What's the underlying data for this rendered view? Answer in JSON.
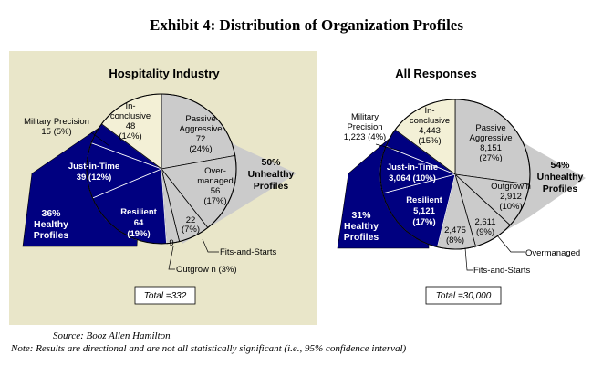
{
  "title": "Exhibit 4: Distribution of Organization Profiles",
  "colors": {
    "panel_bg": "#e9e6c9",
    "healthy_fill": "#000080",
    "unhealthy_fill": "#cbcbcb",
    "inconclusive_fill": "#f3f0d6",
    "outline": "#000000"
  },
  "chart_data": [
    {
      "type": "pie",
      "title": "Hospitality Industry",
      "total_label": "Total =332",
      "total": 332,
      "slices": [
        {
          "name": "Passive Aggressive",
          "value": 72,
          "percent": 24,
          "group": "unhealthy"
        },
        {
          "name": "Over-managed",
          "value": 56,
          "percent": 17,
          "group": "unhealthy"
        },
        {
          "name": "Fits-and-Starts",
          "value": 22,
          "percent": 7,
          "group": "unhealthy"
        },
        {
          "name": "Outgrown",
          "value": 9,
          "percent": 3,
          "group": "unhealthy"
        },
        {
          "name": "Resilient",
          "value": 64,
          "percent": 19,
          "group": "healthy"
        },
        {
          "name": "Just-in-Time",
          "value": 39,
          "percent": 12,
          "group": "healthy"
        },
        {
          "name": "Military Precision",
          "value": 15,
          "percent": 5,
          "group": "healthy"
        },
        {
          "name": "Inconclusive",
          "value": 48,
          "percent": 14,
          "group": "inconclusive"
        }
      ],
      "labels": {
        "passive": [
          "Passive",
          "Aggressive",
          "72",
          "(24%)"
        ],
        "over": [
          "Over-",
          "managed",
          "56",
          "(17%)"
        ],
        "fits": [
          "22",
          "(7%)"
        ],
        "fits_call": "Fits-and-Starts",
        "out_inner": "9",
        "out_call": "Outgrow n (3%)",
        "resilient": [
          "Resilient",
          "64",
          "(19%)"
        ],
        "jit": [
          "Just-in-Time",
          "39 (12%)"
        ],
        "military": [
          "Military Precision",
          "15  (5%)"
        ],
        "incon": [
          "In-",
          "conclusive",
          "48",
          "(14%)"
        ]
      },
      "healthy_label": [
        "36%",
        "Healthy",
        "Profiles"
      ],
      "unhealthy_label": [
        "50%",
        "Unhealthy",
        "Profiles"
      ]
    },
    {
      "type": "pie",
      "title": "All Responses",
      "total_label": "Total =30,000",
      "total": 30000,
      "slices": [
        {
          "name": "Passive Aggressive",
          "value": 8151,
          "percent": 27,
          "group": "unhealthy"
        },
        {
          "name": "Outgrown",
          "value": 2912,
          "percent": 10,
          "group": "unhealthy"
        },
        {
          "name": "Overmanaged",
          "value": 2611,
          "percent": 9,
          "group": "unhealthy"
        },
        {
          "name": "Fits-and-Starts",
          "value": 2475,
          "percent": 8,
          "group": "unhealthy"
        },
        {
          "name": "Resilient",
          "value": 5121,
          "percent": 17,
          "group": "healthy"
        },
        {
          "name": "Just-in-Time",
          "value": 3064,
          "percent": 10,
          "group": "healthy"
        },
        {
          "name": "Military Precision",
          "value": 1223,
          "percent": 4,
          "group": "healthy"
        },
        {
          "name": "Inconclusive",
          "value": 4443,
          "percent": 15,
          "group": "inconclusive"
        }
      ],
      "labels": {
        "passive": [
          "Passive",
          "Aggressive",
          "8,151",
          "(27%)"
        ],
        "outgrown": [
          "Outgrow n",
          "2,912",
          "(10%)"
        ],
        "over_inner": [
          "2,611",
          "(9%)"
        ],
        "over_call": "Overmanaged",
        "fits_inner": [
          "2,475",
          "(8%)"
        ],
        "fits_call": "Fits-and-Starts",
        "resilient": [
          "Resilient",
          "5,121",
          "(17%)"
        ],
        "jit": [
          "Just-in-Time",
          "3,064 (10%)"
        ],
        "military": [
          "Military",
          "Precision",
          "1,223  (4%)"
        ],
        "incon": [
          "In-",
          "conclusive",
          "4,443",
          "(15%)"
        ]
      },
      "healthy_label": [
        "31%",
        "Healthy",
        "Profiles"
      ],
      "unhealthy_label": [
        "54%",
        "Unhealthy",
        "Profiles"
      ]
    }
  ],
  "source": "Source: Booz Allen Hamilton",
  "note": "Note: Results are directional and are not all statistically significant (i.e., 95% confidence interval)"
}
